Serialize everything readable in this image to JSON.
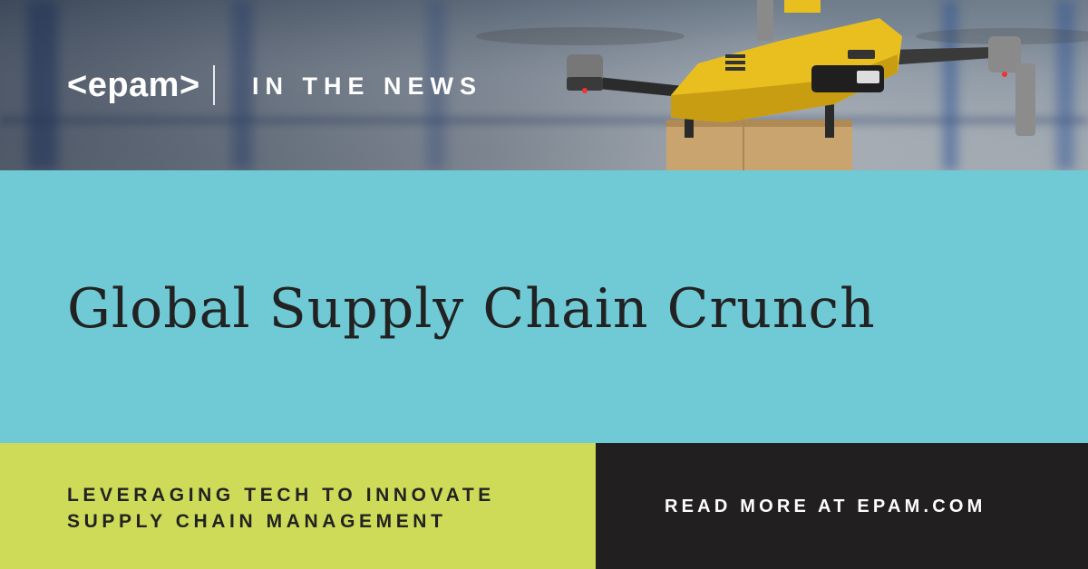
{
  "brand": {
    "logo_text": "<epam>"
  },
  "header": {
    "section_label": "IN THE NEWS"
  },
  "hero": {
    "headline": "Global Supply Chain Crunch"
  },
  "footer": {
    "subtitle_lines": [
      "LEVERAGING TECH TO INNOVATE",
      "SUPPLY CHAIN MANAGEMENT"
    ],
    "cta": "READ MORE AT EPAM.COM"
  },
  "photo": {
    "subject": "delivery-drone-carrying-box",
    "icon": "drone-icon"
  },
  "colors": {
    "cyan_band": "#70cad6",
    "lime_band": "#cedb58",
    "dark_band": "#221f20",
    "headline_text": "#222222",
    "drone_yellow": "#e9bf1f"
  }
}
